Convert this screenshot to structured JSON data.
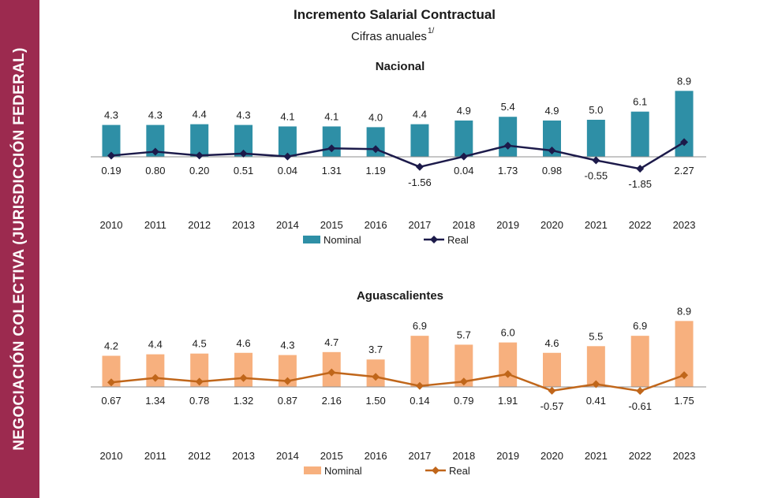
{
  "side_label": "NEGOCIACIÓN COLECTIVA (JURISDICCIÓN FEDERAL)",
  "chart_data": {
    "title": "Incremento Salarial Contractual",
    "subtitle": "Cifras anuales",
    "subtitle_note": "1/",
    "categories": [
      "2010",
      "2011",
      "2012",
      "2013",
      "2014",
      "2015",
      "2016",
      "2017",
      "2018",
      "2019",
      "2020",
      "2021",
      "2022",
      "2023"
    ],
    "panels": [
      {
        "name": "Nacional",
        "type": "bar+line",
        "bar_color": "#2e8fa6",
        "line_color": "#1c1a4a",
        "legend": {
          "nominal": "Nominal",
          "real": "Real"
        },
        "nominal": [
          4.3,
          4.3,
          4.4,
          4.3,
          4.1,
          4.1,
          4.0,
          4.4,
          4.9,
          5.4,
          4.9,
          5.0,
          6.1,
          8.9
        ],
        "nominal_labels": [
          "4.3",
          "4.3",
          "4.4",
          "4.3",
          "4.1",
          "4.1",
          "4.0",
          "4.4",
          "4.9",
          "5.4",
          "4.9",
          "5.0",
          "6.1",
          "8.9"
        ],
        "real": [
          0.19,
          0.8,
          0.2,
          0.51,
          0.04,
          1.31,
          1.19,
          -1.56,
          0.04,
          1.73,
          0.98,
          -0.55,
          -1.85,
          2.27
        ],
        "real_labels": [
          "0.19",
          "0.80",
          "0.20",
          "0.51",
          "0.04",
          "1.31",
          "1.19",
          "-1.56",
          "0.04",
          "1.73",
          "0.98",
          "-0.55",
          "-1.85",
          "2.27"
        ]
      },
      {
        "name": "Aguascalientes",
        "type": "bar+line",
        "bar_color": "#f7b07e",
        "line_color": "#c0661a",
        "legend": {
          "nominal": "Nominal",
          "real": "Real"
        },
        "nominal": [
          4.2,
          4.4,
          4.5,
          4.6,
          4.3,
          4.7,
          3.7,
          6.9,
          5.7,
          6.0,
          4.6,
          5.5,
          6.9,
          8.9
        ],
        "nominal_labels": [
          "4.2",
          "4.4",
          "4.5",
          "4.6",
          "4.3",
          "4.7",
          "3.7",
          "6.9",
          "5.7",
          "6.0",
          "4.6",
          "5.5",
          "6.9",
          "8.9"
        ],
        "real": [
          0.67,
          1.34,
          0.78,
          1.32,
          0.87,
          2.16,
          1.5,
          0.14,
          0.79,
          1.91,
          -0.57,
          0.41,
          -0.61,
          1.75
        ],
        "real_labels": [
          "0.67",
          "1.34",
          "0.78",
          "1.32",
          "0.87",
          "2.16",
          "1.50",
          "0.14",
          "0.79",
          "1.91",
          "-0.57",
          "0.41",
          "-0.61",
          "1.75"
        ]
      }
    ]
  }
}
